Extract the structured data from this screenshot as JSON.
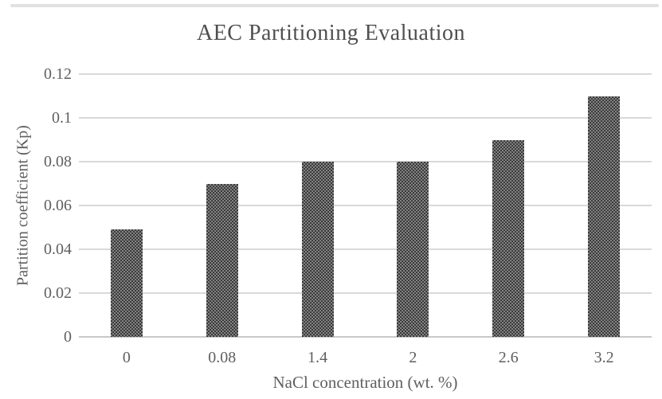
{
  "figure": {
    "top_rule_color": "#e1e1e1",
    "background": "#ffffff"
  },
  "chart_data": {
    "type": "bar",
    "title": "AEC Partitioning Evaluation",
    "xlabel": "NaCl concentration (wt. %)",
    "ylabel": "Partition coefficient (Kp)",
    "categories": [
      "0",
      "0.08",
      "1.4",
      "2",
      "2.6",
      "3.2"
    ],
    "values": [
      0.049,
      0.07,
      0.08,
      0.08,
      0.09,
      0.11
    ],
    "ylim": [
      0,
      0.12
    ],
    "yticks": [
      "0",
      "0.02",
      "0.04",
      "0.06",
      "0.08",
      "0.1",
      "0.12"
    ],
    "grid": true,
    "legend": "none",
    "colors": {
      "bar_fill": "#2e2e2e",
      "bar_pattern_dot": "#9a9a9a",
      "gridline": "#d9d9d9",
      "axis_line": "#c9c9c9",
      "tick_text": "#5f5f5f",
      "title_text": "#4f4f4f"
    }
  }
}
